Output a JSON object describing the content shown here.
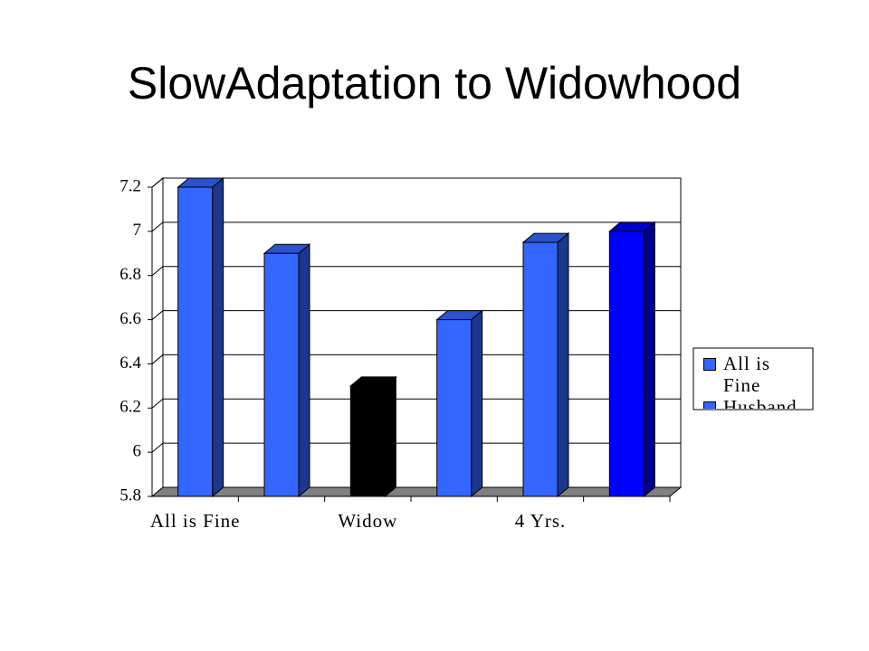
{
  "chart_data": {
    "type": "bar3d",
    "title": "SlowAdaptation to Widowhood",
    "categories": [
      "All is Fine",
      null,
      "Widow",
      null,
      "4 Yrs.",
      null
    ],
    "values": [
      7.2,
      6.9,
      6.3,
      6.6,
      6.95,
      7.0
    ],
    "colors": [
      "#3366ff",
      "#3366ff",
      "#000000",
      "#3366ff",
      "#3366ff",
      "#0000ff"
    ],
    "legend": [
      {
        "name": "All is Fine",
        "color": "#3366ff"
      },
      {
        "name": "Husband",
        "color": "#3366ff"
      }
    ],
    "ylim": [
      5.8,
      7.2
    ],
    "yticks": [
      5.8,
      6,
      6.2,
      6.4,
      6.6,
      6.8,
      7,
      7.2
    ],
    "grid": true
  }
}
